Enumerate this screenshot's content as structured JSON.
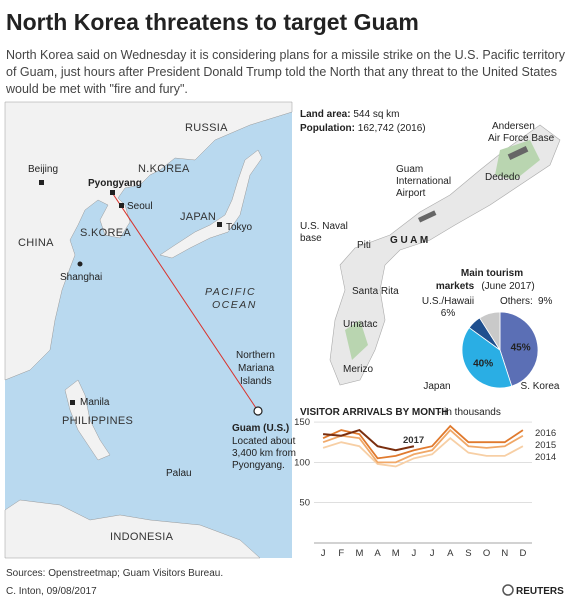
{
  "header": {
    "title": "North Korea threatens to target Guam",
    "subtitle": [
      "North Korea said on Wednesday it is considering plans for a missile strike on the U.S. Pacific territory",
      "of Guam, just hours after President Donald Trump told the North that any threat to the United States",
      "would be met with \"fire and fury\"."
    ]
  },
  "map": {
    "labels": [
      "RUSSIA",
      "N.KOREA",
      "Beijing",
      "Pyongyang",
      "Seoul",
      "JAPAN",
      "Tokyo",
      "CHINA",
      "S.KOREA",
      "Shanghai",
      "PACIFIC",
      "OCEAN",
      "Northern",
      "Mariana",
      "Islands",
      "Guam (U.S.)",
      "Located about",
      "3,400 km from",
      "Pyongyang.",
      "Manila",
      "PHILIPPINES",
      "Palau",
      "INDONESIA"
    ]
  },
  "guam": {
    "land_area_label": "Land area:",
    "land_area": "544 sq km",
    "population_label": "Population:",
    "population": "162,742 (2016)",
    "labels": [
      "Andersen",
      "Air Force Base",
      "Guam",
      "International",
      "Airport",
      "Dededo",
      "U.S. Naval",
      "base",
      "Piti",
      "G U A M",
      "Santa Rita",
      "Umatac",
      "Merizo"
    ]
  },
  "chart_data": [
    {
      "type": "pie",
      "title": "Main tourism",
      "subtitle": "markets",
      "note": "(June 2017)",
      "categories": [
        "S. Korea",
        "Japan",
        "U.S./Hawaii",
        "Others:"
      ],
      "values": [
        45,
        40,
        6,
        9
      ],
      "value_labels": [
        "45%",
        "40%",
        "6%",
        "9%"
      ],
      "colors": [
        "#5b6fb5",
        "#2aaee4",
        "#1f4f8e",
        "#c9c9c9"
      ]
    },
    {
      "type": "line",
      "title": "VISITOR ARRIVALS BY MONTH",
      "subtitle": "- in thousands",
      "categories": [
        "J",
        "F",
        "M",
        "A",
        "M",
        "J",
        "J",
        "A",
        "S",
        "O",
        "N",
        "D"
      ],
      "series": [
        {
          "name": "2017",
          "color": "#7a2e0e",
          "values": [
            135,
            133,
            140,
            120,
            115,
            120,
            null,
            null,
            null,
            null,
            null,
            null
          ]
        },
        {
          "name": "2016",
          "color": "#e07a2e",
          "values": [
            130,
            140,
            135,
            105,
            108,
            115,
            120,
            145,
            125,
            125,
            125,
            140
          ]
        },
        {
          "name": "2015",
          "color": "#f0a868",
          "values": [
            125,
            133,
            130,
            100,
            100,
            110,
            115,
            140,
            120,
            118,
            120,
            133
          ]
        },
        {
          "name": "2014",
          "color": "#f7cfa5",
          "values": [
            118,
            125,
            120,
            98,
            95,
            105,
            110,
            130,
            112,
            108,
            108,
            120
          ]
        }
      ],
      "ylim": [
        0,
        155
      ],
      "yticks": [
        50,
        100,
        150
      ],
      "grid": true
    }
  ],
  "footer": {
    "sources": "Sources: Openstreetmap; Guam Visitors Bureau.",
    "credit": "C. Inton,  09/08/2017",
    "brand": "REUTERS"
  }
}
